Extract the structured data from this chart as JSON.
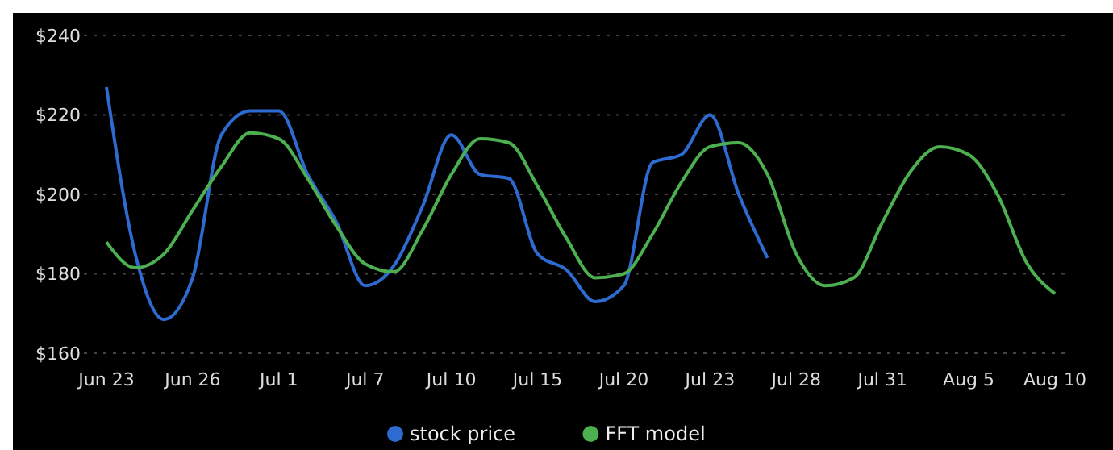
{
  "chart_data": {
    "type": "line",
    "categories": [
      "Jun 23",
      null,
      null,
      "Jun 26",
      null,
      null,
      "Jul 1",
      null,
      null,
      "Jul 7",
      null,
      null,
      "Jul 10",
      null,
      null,
      "Jul 15",
      null,
      null,
      "Jul 20",
      null,
      null,
      "Jul 23",
      null,
      null,
      "Jul 28",
      null,
      null,
      "Jul 31",
      null,
      null,
      "Aug 5",
      null,
      null,
      "Aug 10"
    ],
    "series": [
      {
        "name": "stock price",
        "color": "#2e6bd0",
        "values": [
          227,
          185,
          168.5,
          179,
          215,
          221,
          221,
          205,
          193,
          177,
          182,
          197,
          215,
          205,
          204,
          185,
          181,
          173,
          177,
          208,
          210,
          220,
          200,
          184,
          null,
          null,
          null,
          null,
          null,
          null,
          null,
          null,
          null,
          null
        ]
      },
      {
        "name": "FFT model",
        "color": "#4caf50",
        "values": [
          188,
          181.5,
          185,
          196,
          207,
          215.5,
          214,
          204,
          192,
          182.5,
          180.5,
          191,
          205,
          214,
          213,
          202,
          189,
          179,
          180,
          190,
          203,
          212,
          213,
          205,
          185,
          177,
          179,
          193,
          206,
          212,
          210,
          200,
          183,
          175
        ]
      }
    ],
    "ylim": [
      160,
      240
    ],
    "yticks": [
      {
        "value": 160,
        "label": "$160"
      },
      {
        "value": 180,
        "label": "$180"
      },
      {
        "value": 200,
        "label": "$200"
      },
      {
        "value": 220,
        "label": "$220"
      },
      {
        "value": 240,
        "label": "$240"
      }
    ],
    "grid": "y",
    "legend": "bottom",
    "marker": "none",
    "line_style": "solid"
  }
}
